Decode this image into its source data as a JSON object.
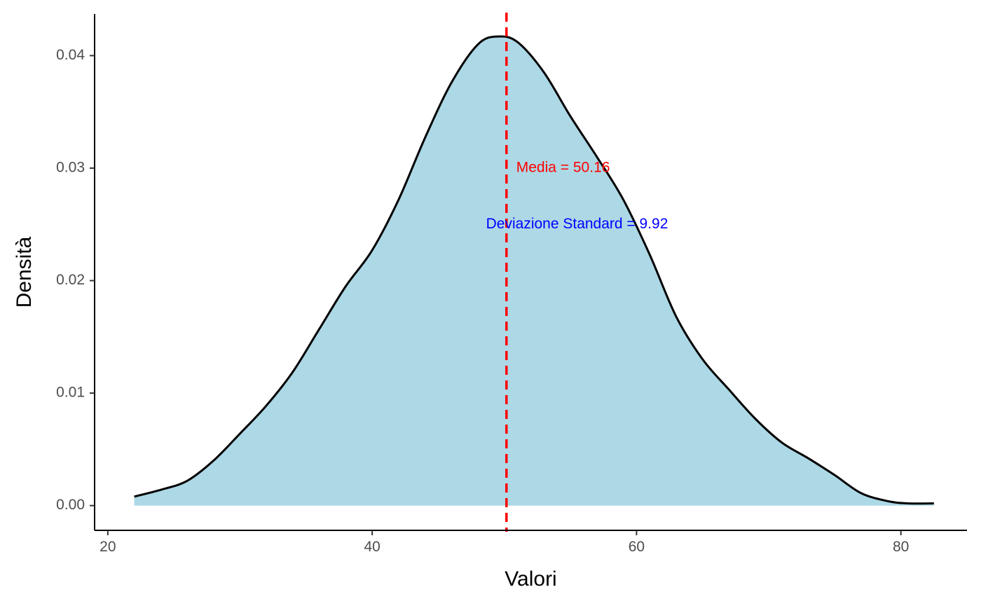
{
  "chart_data": {
    "type": "area",
    "title": "",
    "xlabel": "Valori",
    "ylabel": "Densità",
    "xlim": [
      19,
      85
    ],
    "ylim": [
      -0.0022,
      0.0437
    ],
    "x_ticks": [
      20,
      40,
      60,
      80
    ],
    "y_ticks": [
      0.0,
      0.01,
      0.02,
      0.03,
      0.04
    ],
    "y_tick_labels": [
      "0.00",
      "0.01",
      "0.02",
      "0.03",
      "0.04"
    ],
    "grid": false,
    "legend": "none",
    "series": [
      {
        "x": [
          22,
          24,
          26,
          28,
          30,
          32,
          34,
          36,
          38,
          40,
          42,
          44,
          46,
          48,
          49.5,
          51,
          53,
          55,
          57,
          59,
          61,
          63,
          65,
          67,
          69,
          71,
          73,
          75,
          77,
          79,
          80.5,
          82.5
        ],
        "y": [
          0.0008,
          0.0014,
          0.0022,
          0.004,
          0.0064,
          0.0089,
          0.0119,
          0.0157,
          0.0195,
          0.0227,
          0.0272,
          0.0327,
          0.0376,
          0.041,
          0.0417,
          0.0412,
          0.0385,
          0.0346,
          0.031,
          0.0272,
          0.0223,
          0.0168,
          0.013,
          0.0103,
          0.0077,
          0.0056,
          0.0042,
          0.0027,
          0.0011,
          0.0004,
          0.0002,
          0.0002
        ],
        "fill": "#add8e6",
        "line": "#000000"
      }
    ],
    "annotations": [
      {
        "text": "Media = 50.16",
        "x": 50.9,
        "y": 0.03,
        "anchor": "start",
        "color": "#ff0000"
      },
      {
        "text": "Deviazione Standard = 9.92",
        "x": 55.5,
        "y": 0.025,
        "anchor": "middle",
        "color": "#0000ff"
      }
    ],
    "vline": {
      "x": 50.16,
      "color": "#ff0000",
      "style": "dashed"
    }
  }
}
